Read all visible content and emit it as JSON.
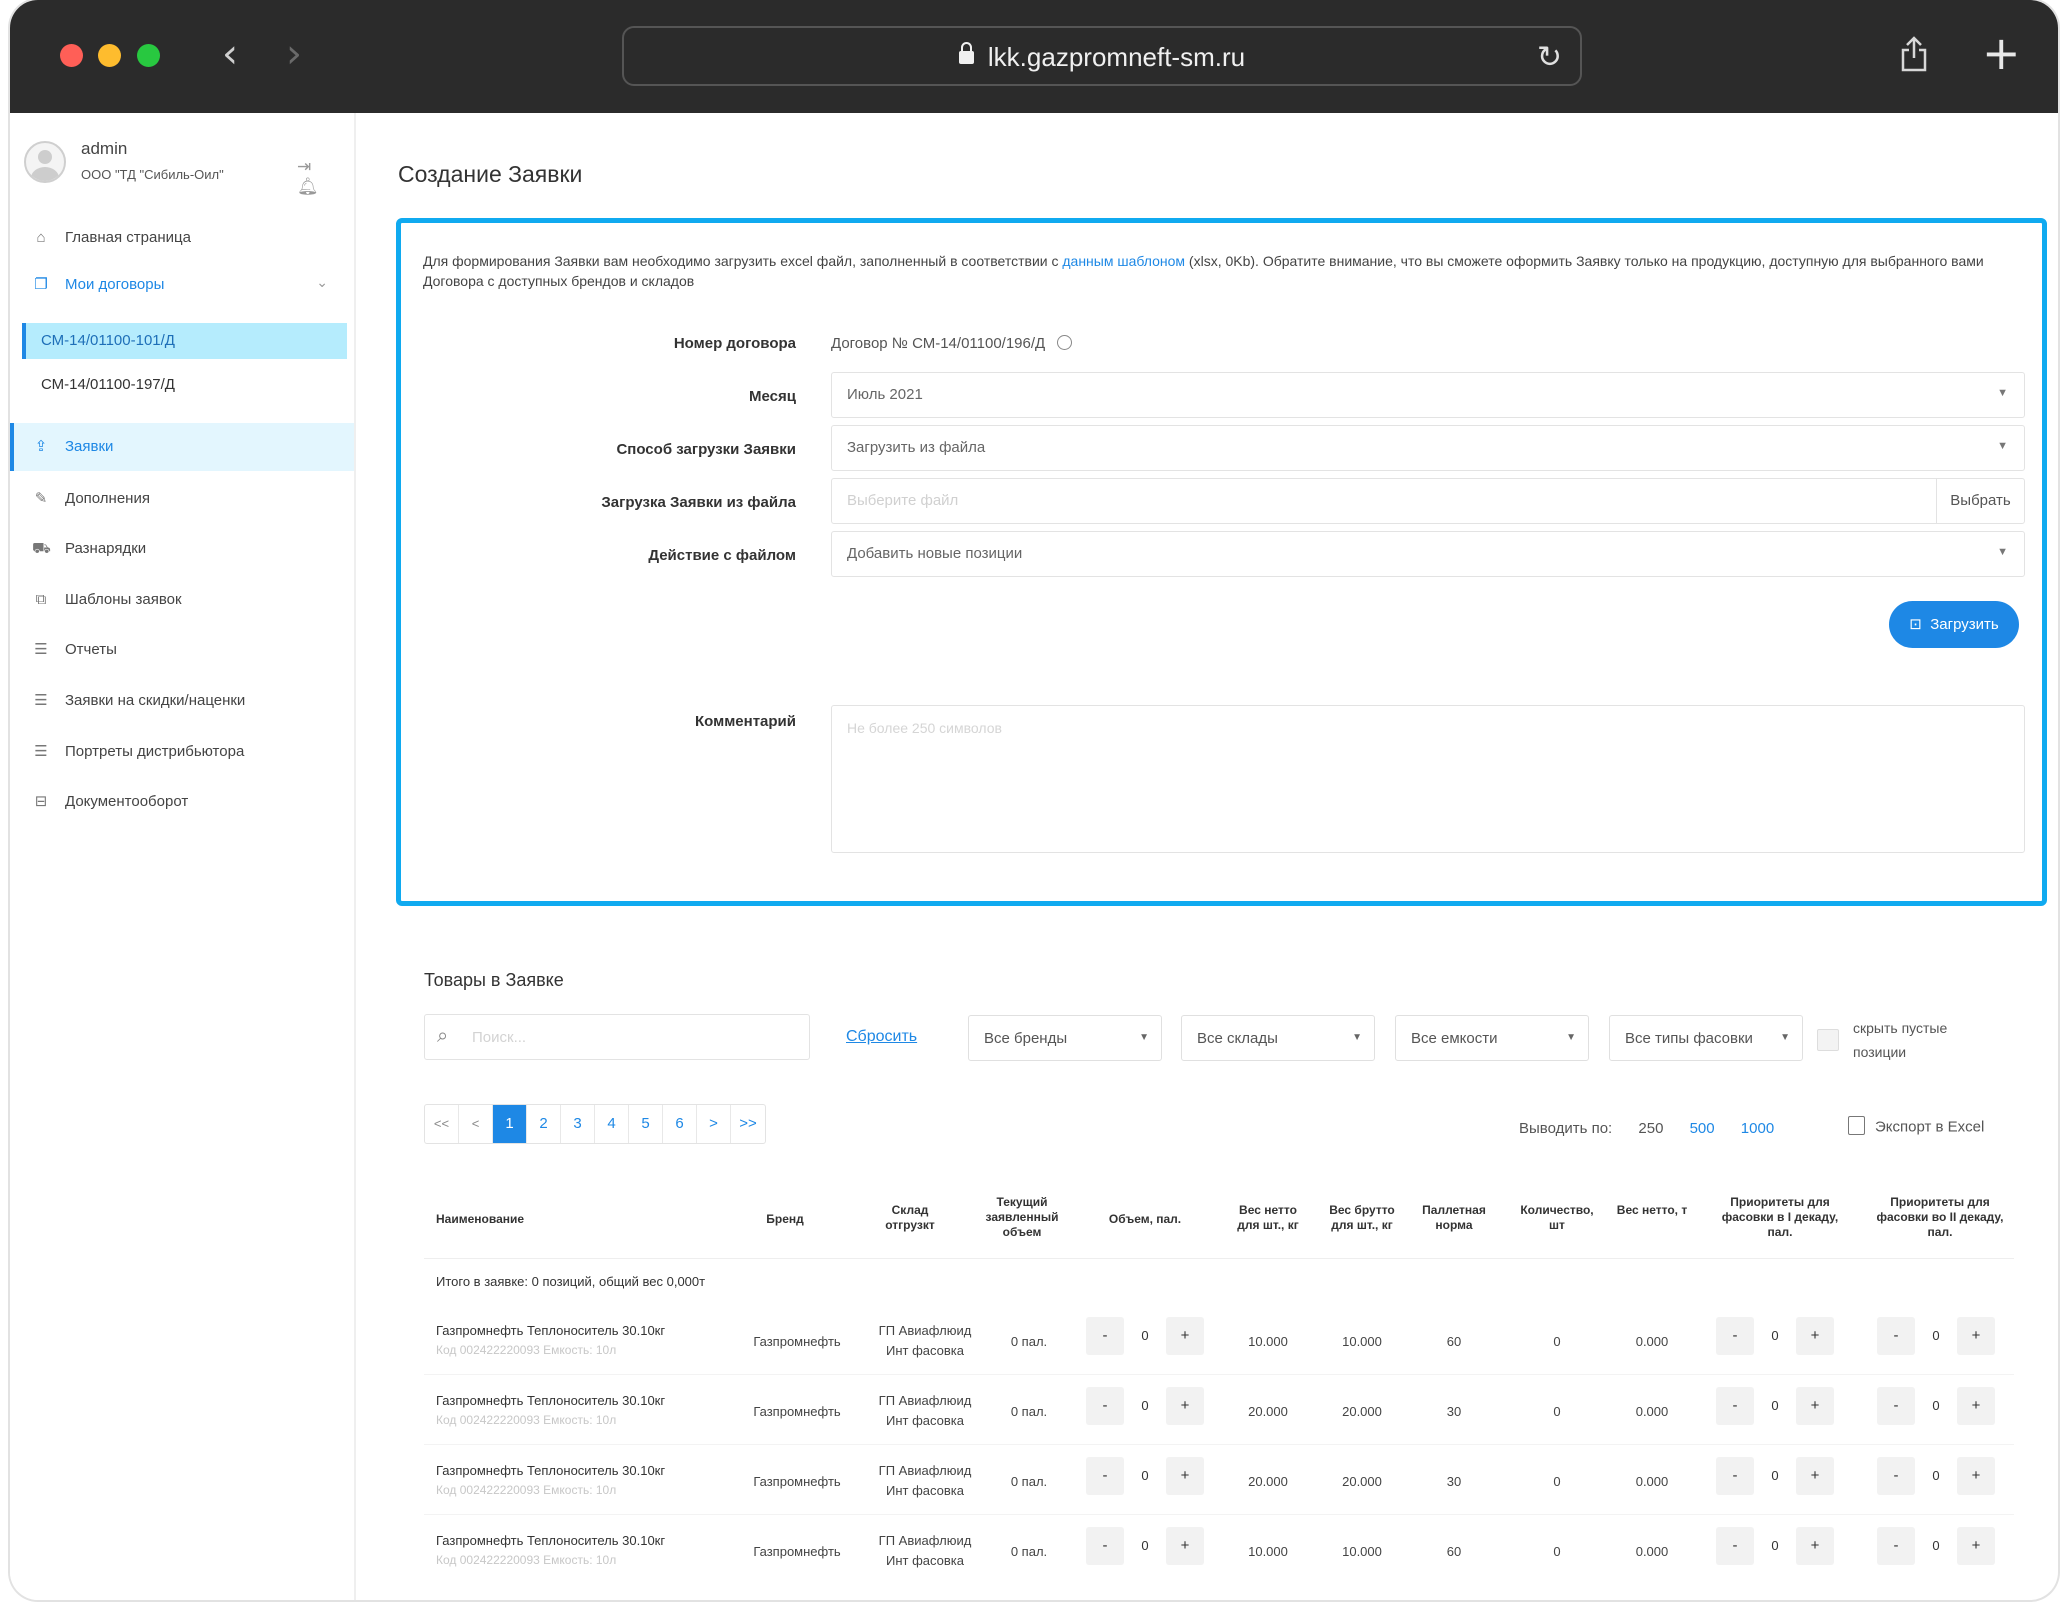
{
  "browser": {
    "url": "lkk.gazpromneft-sm.ru"
  },
  "user": {
    "name": "admin",
    "org": "ООО \"ТД \"Сибиль-Оил\""
  },
  "sidebar": {
    "home": "Главная страница",
    "contracts": "Мои договоры",
    "contract_list": [
      "СМ-14/01100-101/Д",
      "СМ-14/01100-197/Д"
    ],
    "items": [
      "Заявки",
      "Дополнения",
      "Разнарядки",
      "Шаблоны заявок",
      "Отчеты",
      "Заявки на скидки/наценки",
      "Портреты дистрибьютора",
      "Документооборот"
    ]
  },
  "page": {
    "title": "Создание Заявки"
  },
  "form": {
    "intro_before": "Для формирования Заявки вам необходимо загрузить excel файл, заполненный в соответствии с ",
    "intro_link": "данным шаблоном",
    "intro_after": " (xlsx, 0Kb). Обратите внимание, что вы сможете оформить Заявку только на продукцию, доступную для выбранного вами Договора с доступных брендов и складов",
    "contract_label": "Номер договора",
    "contract_value": "Договор № СМ-14/01100/196/Д",
    "month_label": "Месяц",
    "month_value": "Июль 2021",
    "method_label": "Способ загрузки Заявки",
    "method_value": "Загрузить из файла",
    "file_label": "Загрузка Заявки из файла",
    "file_placeholder": "Выберите файл",
    "file_button": "Выбрать",
    "action_label": "Действие с файлом",
    "action_value": "Добавить новые позиции",
    "upload_button": "Загрузить",
    "comment_label": "Комментарий",
    "comment_placeholder": "Не более 250 символов"
  },
  "goods": {
    "title": "Товары в Заявке",
    "search_placeholder": "Поиск...",
    "reset": "Сбросить",
    "filters": [
      "Все бренды",
      "Все склады",
      "Все емкости",
      "Все типы фасовки"
    ],
    "hide_empty": "скрыть пустые позиции",
    "pages": [
      "<<",
      "<",
      "1",
      "2",
      "3",
      "4",
      "5",
      "6",
      ">",
      ">>"
    ],
    "current_page": "1",
    "perpage_label": "Выводить по:",
    "perpage_options": [
      "250",
      "500",
      "1000"
    ],
    "export": "Экспорт в Excel",
    "columns": [
      "Наименование",
      "Бренд",
      "Склад отгрузкт",
      "Текущий заявленный объем",
      "Объем, пал.",
      "Вес нетто для шт., кг",
      "Вес брутто для шт., кг",
      "Паллетная норма",
      "Количество, шт",
      "Вес нетто, т",
      "Приоритеты для фасовки в I декаду, пал.",
      "Приоритеты для фасовки во II декаду, пал."
    ],
    "total": "Итого в заявке: 0 позиций, общий вес 0,000т",
    "rows": [
      {
        "name": "Газпромнефть Теплоноситель 30.10кг",
        "code": "Код 002422220093 Емкость: 10л",
        "brand": "Газпромнефть",
        "warehouse_1": "ГП Авиафлюид",
        "warehouse_2": "Инт фасовка",
        "current": "0 пал.",
        "volume": "0",
        "net": "10.000",
        "gross": "10.000",
        "norm": "60",
        "qty": "0",
        "net_t": "0.000",
        "p1": "0",
        "p2": "0"
      },
      {
        "name": "Газпромнефть Теплоноситель 30.10кг",
        "code": "Код 002422220093 Емкость: 10л",
        "brand": "Газпромнефть",
        "warehouse_1": "ГП Авиафлюид",
        "warehouse_2": "Инт фасовка",
        "current": "0 пал.",
        "volume": "0",
        "net": "20.000",
        "gross": "20.000",
        "norm": "30",
        "qty": "0",
        "net_t": "0.000",
        "p1": "0",
        "p2": "0"
      },
      {
        "name": "Газпромнефть Теплоноситель 30.10кг",
        "code": "Код 002422220093 Емкость: 10л",
        "brand": "Газпромнефть",
        "warehouse_1": "ГП Авиафлюид",
        "warehouse_2": "Инт фасовка",
        "current": "0 пал.",
        "volume": "0",
        "net": "20.000",
        "gross": "20.000",
        "norm": "30",
        "qty": "0",
        "net_t": "0.000",
        "p1": "0",
        "p2": "0"
      },
      {
        "name": "Газпромнефть Теплоноситель 30.10кг",
        "code": "Код 002422220093 Емкость: 10л",
        "brand": "Газпромнефть",
        "warehouse_1": "ГП Авиафлюид",
        "warehouse_2": "Инт фасовка",
        "current": "0 пал.",
        "volume": "0",
        "net": "10.000",
        "gross": "10.000",
        "norm": "60",
        "qty": "0",
        "net_t": "0.000",
        "p1": "0",
        "p2": "0"
      }
    ],
    "stepper_minus": "-",
    "stepper_plus": "+"
  },
  "colors": {
    "accent": "#1e88e5",
    "card_border": "#10aaf0",
    "selected_bg": "#e3f6fe",
    "active_contract_bg": "#b5ecfd"
  }
}
